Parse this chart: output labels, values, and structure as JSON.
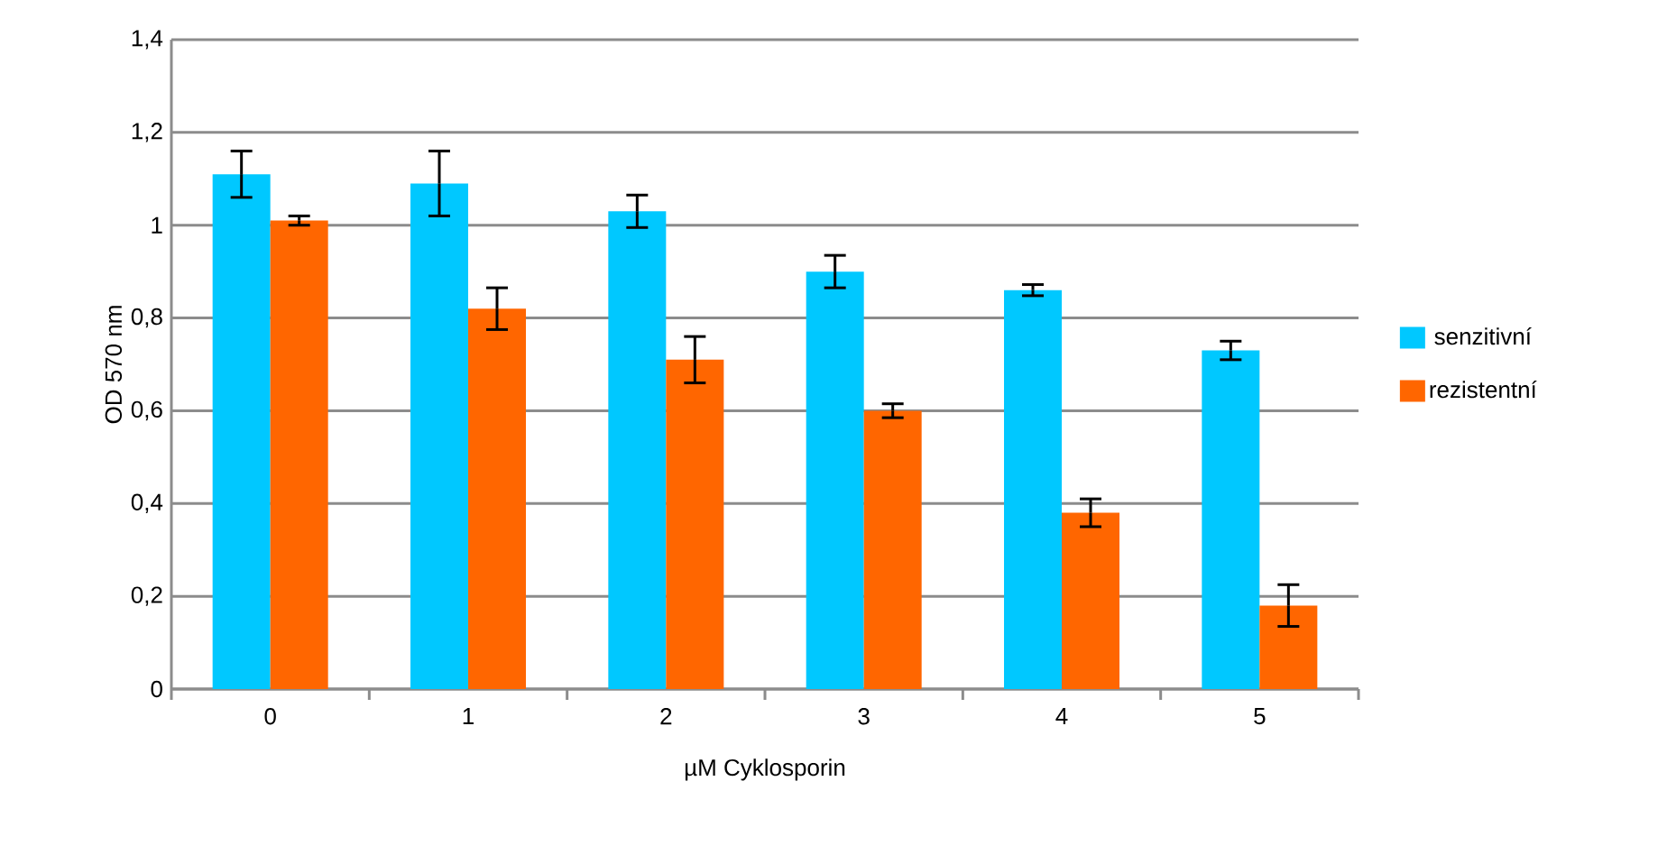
{
  "chart_data": {
    "type": "bar",
    "xlabel": "µM Cyklosporin",
    "ylabel": "OD 570 nm",
    "categories": [
      "0",
      "1",
      "2",
      "3",
      "4",
      "5"
    ],
    "series": [
      {
        "name": "senzitivní",
        "color": "#00c8ff",
        "values": [
          1.11,
          1.09,
          1.03,
          0.9,
          0.86,
          0.73
        ],
        "errors": [
          0.05,
          0.07,
          0.035,
          0.035,
          0.012,
          0.02
        ]
      },
      {
        "name": "rezistentní",
        "color": "#ff6600",
        "values": [
          1.01,
          0.82,
          0.71,
          0.6,
          0.38,
          0.18
        ],
        "errors": [
          0.01,
          0.045,
          0.05,
          0.015,
          0.03,
          0.045
        ]
      }
    ],
    "ylim": [
      0,
      1.4
    ],
    "yticks": [
      {
        "value": 0,
        "label": "0"
      },
      {
        "value": 0.2,
        "label": "0,2"
      },
      {
        "value": 0.4,
        "label": "0,4"
      },
      {
        "value": 0.6,
        "label": "0,6"
      },
      {
        "value": 0.8,
        "label": "0,8"
      },
      {
        "value": 1,
        "label": "1"
      },
      {
        "value": 1.2,
        "label": "1,2"
      },
      {
        "value": 1.4,
        "label": "1,4"
      }
    ],
    "grid": "y",
    "legend": "right"
  }
}
